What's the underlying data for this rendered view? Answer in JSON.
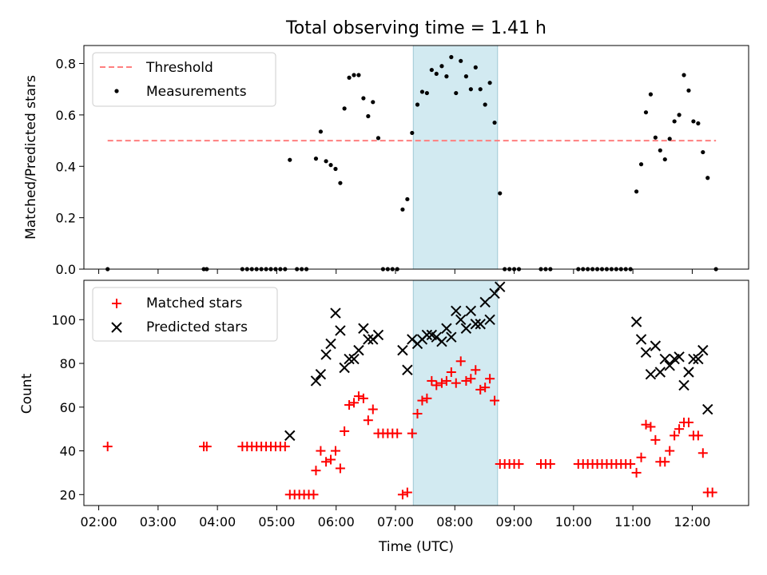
{
  "chart_data": [
    {
      "type": "scatter",
      "title": "Total observing time = 1.41 h",
      "xlabel": "",
      "ylabel": "Matched/Predicted stars",
      "xlim": [
        1.75,
        12.95
      ],
      "ylim": [
        0,
        0.87
      ],
      "yticks": [
        0.0,
        0.2,
        0.4,
        0.6,
        0.8
      ],
      "ytick_labels": [
        "0.0",
        "0.2",
        "0.4",
        "0.6",
        "0.8"
      ],
      "grid": false,
      "legend_position": "top-left",
      "threshold": {
        "name": "Threshold",
        "y": 0.5,
        "x_range": [
          2.15,
          12.4
        ],
        "color": "#ff7f7f",
        "style": "dashed"
      },
      "highlight_span": {
        "x_range": [
          7.3,
          8.72
        ],
        "color": "#add8e6"
      },
      "series": [
        {
          "name": "Measurements",
          "color": "#000000",
          "marker": "dot",
          "points": [
            [
              2.15,
              0.0
            ],
            [
              3.77,
              0.0
            ],
            [
              3.82,
              0.0
            ],
            [
              4.42,
              0.0
            ],
            [
              4.5,
              0.0
            ],
            [
              4.58,
              0.0
            ],
            [
              4.66,
              0.0
            ],
            [
              4.74,
              0.0
            ],
            [
              4.82,
              0.0
            ],
            [
              4.9,
              0.0
            ],
            [
              4.98,
              0.0
            ],
            [
              5.06,
              0.0
            ],
            [
              5.14,
              0.0
            ],
            [
              5.22,
              0.425
            ],
            [
              5.34,
              0.0
            ],
            [
              5.42,
              0.0
            ],
            [
              5.5,
              0.0
            ],
            [
              5.66,
              0.43
            ],
            [
              5.74,
              0.535
            ],
            [
              5.83,
              0.42
            ],
            [
              5.91,
              0.405
            ],
            [
              5.99,
              0.39
            ],
            [
              6.07,
              0.335
            ],
            [
              6.14,
              0.625
            ],
            [
              6.22,
              0.745
            ],
            [
              6.3,
              0.755
            ],
            [
              6.38,
              0.755
            ],
            [
              6.46,
              0.665
            ],
            [
              6.54,
              0.595
            ],
            [
              6.62,
              0.65
            ],
            [
              6.71,
              0.51
            ],
            [
              6.79,
              0.0
            ],
            [
              6.87,
              0.0
            ],
            [
              6.95,
              0.0
            ],
            [
              7.03,
              0.0
            ],
            [
              7.12,
              0.232
            ],
            [
              7.2,
              0.272
            ],
            [
              7.28,
              0.53
            ],
            [
              7.37,
              0.64
            ],
            [
              7.45,
              0.69
            ],
            [
              7.53,
              0.685
            ],
            [
              7.61,
              0.775
            ],
            [
              7.69,
              0.76
            ],
            [
              7.78,
              0.79
            ],
            [
              7.86,
              0.75
            ],
            [
              7.94,
              0.825
            ],
            [
              8.02,
              0.685
            ],
            [
              8.1,
              0.81
            ],
            [
              8.19,
              0.75
            ],
            [
              8.27,
              0.7
            ],
            [
              8.35,
              0.785
            ],
            [
              8.43,
              0.7
            ],
            [
              8.51,
              0.64
            ],
            [
              8.59,
              0.725
            ],
            [
              8.67,
              0.57
            ],
            [
              8.76,
              0.295
            ],
            [
              8.84,
              0.0
            ],
            [
              8.92,
              0.0
            ],
            [
              9.0,
              0.0
            ],
            [
              9.08,
              0.0
            ],
            [
              9.45,
              0.0
            ],
            [
              9.53,
              0.0
            ],
            [
              9.61,
              0.0
            ],
            [
              10.08,
              0.0
            ],
            [
              10.16,
              0.0
            ],
            [
              10.24,
              0.0
            ],
            [
              10.32,
              0.0
            ],
            [
              10.4,
              0.0
            ],
            [
              10.48,
              0.0
            ],
            [
              10.56,
              0.0
            ],
            [
              10.64,
              0.0
            ],
            [
              10.72,
              0.0
            ],
            [
              10.8,
              0.0
            ],
            [
              10.88,
              0.0
            ],
            [
              10.96,
              0.0
            ],
            [
              11.06,
              0.302
            ],
            [
              11.14,
              0.408
            ],
            [
              11.22,
              0.61
            ],
            [
              11.3,
              0.68
            ],
            [
              11.38,
              0.512
            ],
            [
              11.46,
              0.462
            ],
            [
              11.54,
              0.427
            ],
            [
              11.62,
              0.507
            ],
            [
              11.7,
              0.575
            ],
            [
              11.78,
              0.6
            ],
            [
              11.86,
              0.755
            ],
            [
              11.94,
              0.695
            ],
            [
              12.02,
              0.575
            ],
            [
              12.1,
              0.567
            ],
            [
              12.18,
              0.455
            ],
            [
              12.26,
              0.355
            ],
            [
              12.4,
              0.0
            ]
          ]
        }
      ]
    },
    {
      "type": "scatter",
      "title": "",
      "xlabel": "Time (UTC)",
      "ylabel": "Count",
      "xlim": [
        1.75,
        12.95
      ],
      "ylim": [
        15,
        118
      ],
      "xticks": [
        2,
        3,
        4,
        5,
        6,
        7,
        8,
        9,
        10,
        11,
        12
      ],
      "xtick_labels": [
        "02:00",
        "03:00",
        "04:00",
        "05:00",
        "06:00",
        "07:00",
        "08:00",
        "09:00",
        "10:00",
        "11:00",
        "12:00"
      ],
      "yticks": [
        20,
        40,
        60,
        80,
        100
      ],
      "ytick_labels": [
        "20",
        "40",
        "60",
        "80",
        "100"
      ],
      "grid": false,
      "legend_position": "top-left",
      "highlight_span": {
        "x_range": [
          7.3,
          8.72
        ],
        "color": "#add8e6"
      },
      "series": [
        {
          "name": "Matched stars",
          "color": "#ff0000",
          "marker": "plus",
          "points": [
            [
              2.15,
              42
            ],
            [
              3.77,
              42
            ],
            [
              3.82,
              42
            ],
            [
              4.42,
              42
            ],
            [
              4.5,
              42
            ],
            [
              4.58,
              42
            ],
            [
              4.66,
              42
            ],
            [
              4.74,
              42
            ],
            [
              4.82,
              42
            ],
            [
              4.9,
              42
            ],
            [
              4.98,
              42
            ],
            [
              5.06,
              42
            ],
            [
              5.14,
              42
            ],
            [
              5.22,
              20
            ],
            [
              5.3,
              20
            ],
            [
              5.38,
              20
            ],
            [
              5.46,
              20
            ],
            [
              5.54,
              20
            ],
            [
              5.62,
              20
            ],
            [
              5.66,
              31
            ],
            [
              5.74,
              40
            ],
            [
              5.83,
              35
            ],
            [
              5.91,
              36
            ],
            [
              5.99,
              40
            ],
            [
              6.07,
              32
            ],
            [
              6.14,
              49
            ],
            [
              6.22,
              61
            ],
            [
              6.3,
              62
            ],
            [
              6.38,
              65
            ],
            [
              6.46,
              64
            ],
            [
              6.54,
              54
            ],
            [
              6.62,
              59
            ],
            [
              6.71,
              48
            ],
            [
              6.79,
              48
            ],
            [
              6.87,
              48
            ],
            [
              6.95,
              48
            ],
            [
              7.03,
              48
            ],
            [
              7.12,
              20
            ],
            [
              7.2,
              21
            ],
            [
              7.28,
              48
            ],
            [
              7.37,
              57
            ],
            [
              7.45,
              63
            ],
            [
              7.53,
              64
            ],
            [
              7.61,
              72
            ],
            [
              7.69,
              70
            ],
            [
              7.78,
              71
            ],
            [
              7.86,
              72
            ],
            [
              7.94,
              76
            ],
            [
              8.02,
              71
            ],
            [
              8.1,
              81
            ],
            [
              8.19,
              72
            ],
            [
              8.27,
              73
            ],
            [
              8.35,
              77
            ],
            [
              8.43,
              68
            ],
            [
              8.51,
              69
            ],
            [
              8.59,
              73
            ],
            [
              8.67,
              63
            ],
            [
              8.76,
              34
            ],
            [
              8.84,
              34
            ],
            [
              8.92,
              34
            ],
            [
              9.0,
              34
            ],
            [
              9.08,
              34
            ],
            [
              9.45,
              34
            ],
            [
              9.53,
              34
            ],
            [
              9.61,
              34
            ],
            [
              10.08,
              34
            ],
            [
              10.16,
              34
            ],
            [
              10.24,
              34
            ],
            [
              10.32,
              34
            ],
            [
              10.4,
              34
            ],
            [
              10.48,
              34
            ],
            [
              10.56,
              34
            ],
            [
              10.64,
              34
            ],
            [
              10.72,
              34
            ],
            [
              10.8,
              34
            ],
            [
              10.88,
              34
            ],
            [
              10.96,
              34
            ],
            [
              11.06,
              30
            ],
            [
              11.14,
              37
            ],
            [
              11.22,
              52
            ],
            [
              11.3,
              51
            ],
            [
              11.38,
              45
            ],
            [
              11.46,
              35
            ],
            [
              11.54,
              35
            ],
            [
              11.62,
              40
            ],
            [
              11.7,
              47
            ],
            [
              11.78,
              50
            ],
            [
              11.86,
              53
            ],
            [
              11.94,
              53
            ],
            [
              12.02,
              47
            ],
            [
              12.1,
              47
            ],
            [
              12.18,
              39
            ],
            [
              12.26,
              21
            ],
            [
              12.34,
              21
            ]
          ]
        },
        {
          "name": "Predicted stars",
          "color": "#000000",
          "marker": "x",
          "points": [
            [
              5.22,
              47
            ],
            [
              5.66,
              72
            ],
            [
              5.74,
              75
            ],
            [
              5.83,
              84
            ],
            [
              5.91,
              89
            ],
            [
              5.99,
              103
            ],
            [
              6.07,
              95
            ],
            [
              6.14,
              78
            ],
            [
              6.22,
              82
            ],
            [
              6.3,
              82
            ],
            [
              6.38,
              86
            ],
            [
              6.46,
              96
            ],
            [
              6.54,
              91
            ],
            [
              6.62,
              91
            ],
            [
              6.71,
              93
            ],
            [
              7.12,
              86
            ],
            [
              7.2,
              77
            ],
            [
              7.28,
              91
            ],
            [
              7.37,
              89
            ],
            [
              7.45,
              91
            ],
            [
              7.53,
              93
            ],
            [
              7.61,
              93
            ],
            [
              7.69,
              92
            ],
            [
              7.78,
              90
            ],
            [
              7.86,
              96
            ],
            [
              7.94,
              92
            ],
            [
              8.02,
              104
            ],
            [
              8.1,
              100
            ],
            [
              8.19,
              96
            ],
            [
              8.27,
              104
            ],
            [
              8.35,
              98
            ],
            [
              8.43,
              98
            ],
            [
              8.51,
              108
            ],
            [
              8.59,
              100
            ],
            [
              8.67,
              112
            ],
            [
              8.76,
              115
            ],
            [
              11.06,
              99
            ],
            [
              11.14,
              91
            ],
            [
              11.22,
              85
            ],
            [
              11.3,
              75
            ],
            [
              11.38,
              88
            ],
            [
              11.46,
              76
            ],
            [
              11.54,
              82
            ],
            [
              11.62,
              79
            ],
            [
              11.7,
              82
            ],
            [
              11.78,
              83
            ],
            [
              11.86,
              70
            ],
            [
              11.94,
              76
            ],
            [
              12.02,
              82
            ],
            [
              12.1,
              82
            ],
            [
              12.18,
              86
            ],
            [
              12.26,
              59
            ]
          ]
        }
      ]
    }
  ]
}
